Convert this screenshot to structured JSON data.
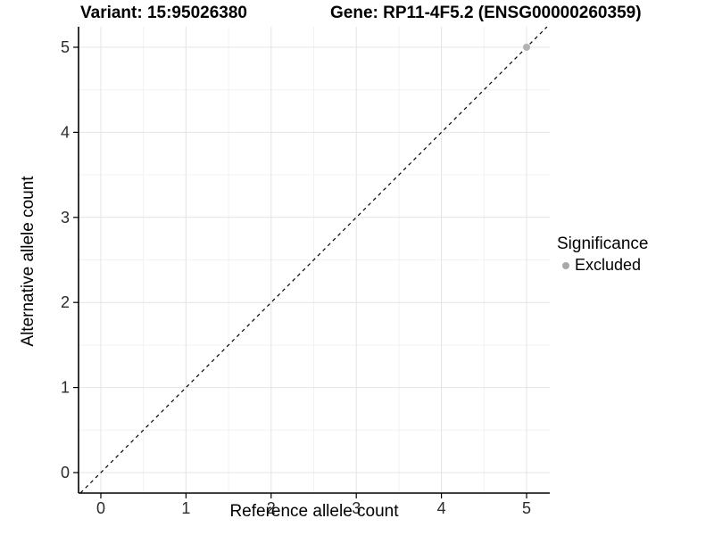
{
  "titles": {
    "variant": "Variant: 15:95026380",
    "gene": "Gene: RP11-4F5.2 (ENSG00000260359)"
  },
  "chart_data": {
    "type": "scatter",
    "xlabel": "Reference allele count",
    "ylabel": "Alternative allele count",
    "xlim": [
      -0.26,
      5.27
    ],
    "ylim": [
      -0.24,
      5.24
    ],
    "xticks": [
      0,
      1,
      2,
      3,
      4,
      5
    ],
    "yticks": [
      0,
      1,
      2,
      3,
      4,
      5
    ],
    "x_minor": [
      0.5,
      1.5,
      2.5,
      3.5,
      4.5
    ],
    "y_minor": [
      0.5,
      1.5,
      2.5,
      3.5,
      4.5
    ],
    "grid": "major-and-minor",
    "reference_line": {
      "type": "abline",
      "slope": 1,
      "intercept": 0,
      "style": "dashed",
      "color": "#000000"
    },
    "series": [
      {
        "name": "Excluded",
        "color": "#b3b3b3",
        "points": [
          {
            "x": 5,
            "y": 5
          }
        ]
      }
    ],
    "legend": {
      "position": "right",
      "title": "Significance",
      "entries": [
        {
          "label": "Excluded",
          "color": "#a8a8a8"
        }
      ]
    }
  },
  "style": {
    "background": "#ffffff",
    "axis_line": "#000000",
    "tick_label": "#2b2b2b",
    "grid_major": "#e4e4e4",
    "grid_minor": "#f2f2f2",
    "point_color": "#b3b3b3",
    "legend_key_color": "#a8a8a8"
  }
}
